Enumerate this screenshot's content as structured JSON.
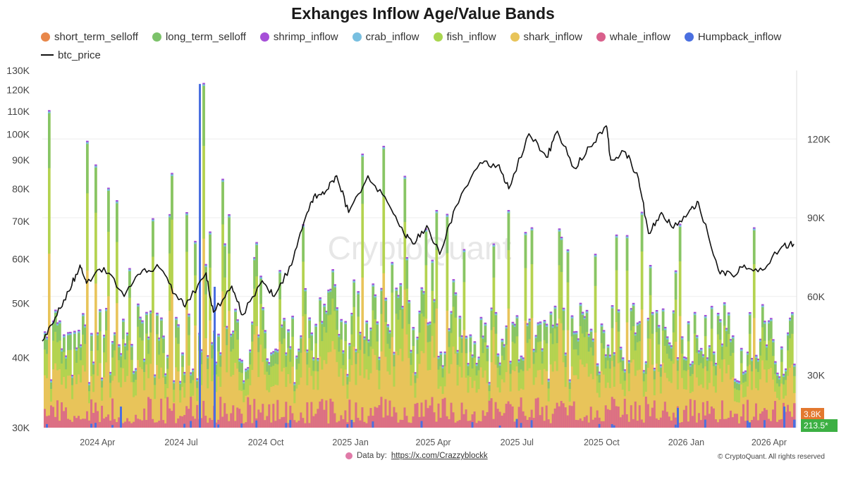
{
  "chart_data": {
    "type": "area",
    "title": "Exhanges Inflow Age/Value Bands",
    "xlabel": "",
    "ylabel": "",
    "y_scale": "log",
    "ylim": [
      30000,
      130000
    ],
    "y_ticks": [
      "30K",
      "40K",
      "50K",
      "60K",
      "70K",
      "80K",
      "90K",
      "100K",
      "110K",
      "120K",
      "130K"
    ],
    "y2_ticks": [
      "30K",
      "60K",
      "90K",
      "120K"
    ],
    "x_ticks": [
      "2024 Apr",
      "2024 Jul",
      "2024 Oct",
      "2025 Jan",
      "2025 Apr",
      "2025 Jul",
      "2025 Oct",
      "2026 Jan",
      "2026 Apr"
    ],
    "x_range": [
      "2024-02-01",
      "2026-05-01"
    ],
    "grid": true,
    "legend_position": "top-left",
    "series": [
      {
        "name": "short_term_selloff",
        "color": "#e8874a"
      },
      {
        "name": "long_term_selloff",
        "color": "#7cc26a"
      },
      {
        "name": "shrimp_inflow",
        "color": "#a64fd8"
      },
      {
        "name": "crab_inflow",
        "color": "#78bfe0"
      },
      {
        "name": "fish_inflow",
        "color": "#a9d64f"
      },
      {
        "name": "shark_inflow",
        "color": "#e8c45a"
      },
      {
        "name": "whale_inflow",
        "color": "#d9608c"
      },
      {
        "name": "Humpback_inflow",
        "color": "#4a6fe0"
      },
      {
        "name": "btc_price",
        "color": "#111111",
        "axis": "right",
        "points": [
          [
            "2024-02-01",
            43000
          ],
          [
            "2024-02-15",
            52000
          ],
          [
            "2024-03-01",
            62000
          ],
          [
            "2024-03-13",
            72000
          ],
          [
            "2024-03-20",
            65000
          ],
          [
            "2024-04-08",
            71000
          ],
          [
            "2024-04-30",
            60000
          ],
          [
            "2024-05-20",
            70000
          ],
          [
            "2024-06-07",
            71000
          ],
          [
            "2024-06-24",
            61000
          ],
          [
            "2024-07-05",
            56000
          ],
          [
            "2024-07-28",
            69000
          ],
          [
            "2024-08-05",
            54000
          ],
          [
            "2024-08-25",
            64000
          ],
          [
            "2024-09-06",
            53000
          ],
          [
            "2024-09-27",
            66000
          ],
          [
            "2024-10-10",
            60000
          ],
          [
            "2024-10-29",
            72000
          ],
          [
            "2024-11-13",
            90000
          ],
          [
            "2024-11-22",
            98000
          ],
          [
            "2024-12-05",
            100000
          ],
          [
            "2024-12-17",
            106000
          ],
          [
            "2024-12-30",
            92000
          ],
          [
            "2025-01-20",
            106000
          ],
          [
            "2025-02-10",
            96000
          ],
          [
            "2025-02-28",
            84000
          ],
          [
            "2025-03-10",
            80000
          ],
          [
            "2025-03-25",
            87000
          ],
          [
            "2025-04-08",
            76000
          ],
          [
            "2025-04-25",
            94000
          ],
          [
            "2025-05-22",
            111000
          ],
          [
            "2025-06-10",
            110000
          ],
          [
            "2025-06-22",
            101000
          ],
          [
            "2025-07-14",
            122000
          ],
          [
            "2025-08-02",
            113000
          ],
          [
            "2025-08-14",
            123000
          ],
          [
            "2025-09-01",
            109000
          ],
          [
            "2025-09-18",
            117000
          ],
          [
            "2025-10-06",
            125000
          ],
          [
            "2025-10-11",
            112000
          ],
          [
            "2025-10-27",
            115000
          ],
          [
            "2025-11-10",
            105000
          ],
          [
            "2025-11-21",
            84000
          ],
          [
            "2025-12-05",
            92000
          ],
          [
            "2025-12-18",
            86000
          ],
          [
            "2026-01-05",
            93000
          ],
          [
            "2026-01-14",
            96000
          ],
          [
            "2026-02-05",
            70000
          ],
          [
            "2026-02-20",
            68000
          ],
          [
            "2026-03-05",
            72000
          ],
          [
            "2026-03-25",
            70000
          ],
          [
            "2026-04-15",
            79000
          ],
          [
            "2026-04-28",
            80000
          ]
        ]
      }
    ],
    "end_labels": [
      "3.8K",
      "213.5*"
    ],
    "watermark": "CryptoQuant"
  },
  "footer": {
    "source_prefix": "Data by:",
    "source_link": "https://x.com/Crazzyblockk",
    "copyright": "© CryptoQuant. All rights reserved"
  }
}
